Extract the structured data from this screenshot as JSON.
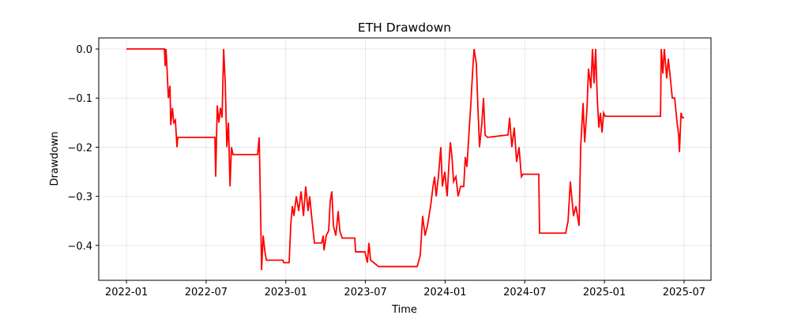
{
  "chart_data": {
    "type": "line",
    "title": "ETH Drawdown",
    "x_label": "Time",
    "y_label": "Drawdown",
    "series": [
      {
        "name": "Drawdown",
        "color": "#ff0000",
        "x": [
          2022.0,
          2022.238,
          2022.243,
          2022.248,
          2022.253,
          2022.263,
          2022.273,
          2022.278,
          2022.288,
          2022.297,
          2022.307,
          2022.317,
          2022.322,
          2022.555,
          2022.56,
          2022.57,
          2022.58,
          2022.59,
          2022.6,
          2022.61,
          2022.62,
          2022.63,
          2022.64,
          2022.65,
          2022.659,
          2022.669,
          2022.823,
          2022.833,
          2022.843,
          2022.848,
          2022.858,
          2022.868,
          2022.878,
          2022.982,
          2022.987,
          2023.021,
          2023.031,
          2023.041,
          2023.051,
          2023.066,
          2023.081,
          2023.096,
          2023.111,
          2023.125,
          2023.14,
          2023.15,
          2023.165,
          2023.18,
          2023.225,
          2023.235,
          2023.24,
          2023.254,
          2023.269,
          2023.279,
          2023.289,
          2023.299,
          2023.314,
          2023.329,
          2023.339,
          2023.354,
          2023.433,
          2023.438,
          2023.497,
          2023.512,
          2023.522,
          2023.532,
          2023.552,
          2023.582,
          2023.825,
          2023.844,
          2023.859,
          2023.874,
          2023.889,
          2023.909,
          2023.924,
          2023.934,
          2023.944,
          2023.958,
          2023.973,
          2023.983,
          2023.998,
          2024.013,
          2024.023,
          2024.033,
          2024.043,
          2024.053,
          2024.068,
          2024.082,
          2024.097,
          2024.117,
          2024.127,
          2024.137,
          2024.152,
          2024.162,
          2024.172,
          2024.182,
          2024.196,
          2024.206,
          2024.216,
          2024.231,
          2024.241,
          2024.251,
          2024.266,
          2024.395,
          2024.405,
          2024.419,
          2024.434,
          2024.449,
          2024.464,
          2024.479,
          2024.489,
          2024.588,
          2024.593,
          2024.757,
          2024.772,
          2024.786,
          2024.806,
          2024.821,
          2024.841,
          2024.851,
          2024.866,
          2024.876,
          2024.891,
          2024.9,
          2024.915,
          2024.925,
          2024.935,
          2024.945,
          2024.955,
          2024.965,
          2024.975,
          2024.985,
          2024.995,
          2025.005,
          2025.352,
          2025.357,
          2025.367,
          2025.376,
          2025.391,
          2025.401,
          2025.411,
          2025.426,
          2025.441,
          2025.456,
          2025.466,
          2025.471,
          2025.481,
          2025.49,
          2025.5
        ],
        "values": [
          0,
          0,
          -0.035,
          0,
          -0.03,
          -0.1,
          -0.075,
          -0.155,
          -0.12,
          -0.15,
          -0.145,
          -0.2,
          -0.18,
          -0.18,
          -0.26,
          -0.115,
          -0.15,
          -0.12,
          -0.14,
          0,
          -0.07,
          -0.2,
          -0.15,
          -0.28,
          -0.2,
          -0.215,
          -0.215,
          -0.18,
          -0.35,
          -0.45,
          -0.38,
          -0.41,
          -0.43,
          -0.43,
          -0.435,
          -0.435,
          -0.36,
          -0.32,
          -0.34,
          -0.3,
          -0.33,
          -0.29,
          -0.34,
          -0.28,
          -0.33,
          -0.3,
          -0.35,
          -0.395,
          -0.395,
          -0.38,
          -0.41,
          -0.38,
          -0.37,
          -0.31,
          -0.29,
          -0.36,
          -0.38,
          -0.33,
          -0.37,
          -0.385,
          -0.385,
          -0.413,
          -0.413,
          -0.435,
          -0.395,
          -0.43,
          -0.435,
          -0.443,
          -0.443,
          -0.42,
          -0.34,
          -0.38,
          -0.36,
          -0.32,
          -0.28,
          -0.26,
          -0.3,
          -0.26,
          -0.2,
          -0.28,
          -0.25,
          -0.3,
          -0.24,
          -0.19,
          -0.22,
          -0.27,
          -0.26,
          -0.3,
          -0.28,
          -0.28,
          -0.22,
          -0.24,
          -0.16,
          -0.11,
          -0.05,
          0,
          -0.03,
          -0.12,
          -0.2,
          -0.15,
          -0.1,
          -0.175,
          -0.18,
          -0.175,
          -0.14,
          -0.2,
          -0.16,
          -0.23,
          -0.2,
          -0.26,
          -0.255,
          -0.255,
          -0.375,
          -0.375,
          -0.35,
          -0.27,
          -0.34,
          -0.32,
          -0.36,
          -0.2,
          -0.11,
          -0.19,
          -0.12,
          -0.04,
          -0.08,
          0,
          -0.07,
          0,
          -0.1,
          -0.16,
          -0.13,
          -0.17,
          -0.13,
          -0.137,
          -0.137,
          0,
          -0.05,
          0,
          -0.06,
          -0.02,
          -0.05,
          -0.1,
          -0.1,
          -0.15,
          -0.175,
          -0.21,
          -0.13,
          -0.14,
          -0.14
        ]
      }
    ],
    "xlim": [
      2021.826,
      2025.669
    ],
    "xticks": [
      {
        "value": 2022.0,
        "label": "2022-01"
      },
      {
        "value": 2022.5,
        "label": "2022-07"
      },
      {
        "value": 2023.0,
        "label": "2023-01"
      },
      {
        "value": 2023.5,
        "label": "2023-07"
      },
      {
        "value": 2024.0,
        "label": "2024-01"
      },
      {
        "value": 2024.5,
        "label": "2024-07"
      },
      {
        "value": 2025.0,
        "label": "2025-01"
      },
      {
        "value": 2025.5,
        "label": "2025-07"
      }
    ],
    "ylim": [
      -0.471,
      0.0225
    ],
    "yticks": [
      {
        "value": -0.4,
        "label": "−0.4"
      },
      {
        "value": -0.3,
        "label": "−0.3"
      },
      {
        "value": -0.2,
        "label": "−0.2"
      },
      {
        "value": -0.1,
        "label": "−0.1"
      },
      {
        "value": 0,
        "label": "0.0"
      }
    ],
    "grid": true
  }
}
